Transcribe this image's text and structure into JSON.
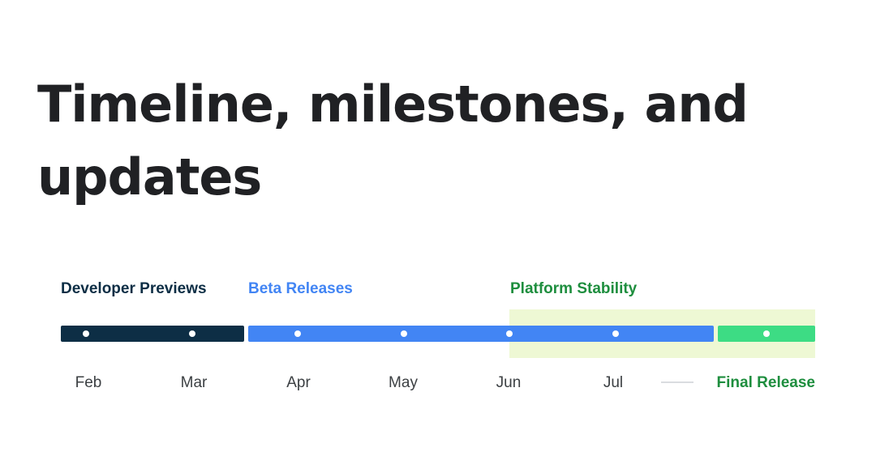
{
  "title": "Timeline, milestones, and updates",
  "phases": {
    "developer_previews": {
      "label": "Developer Previews",
      "color": "#0d2e45"
    },
    "beta_releases": {
      "label": "Beta Releases",
      "color": "#4285f4"
    },
    "platform_stability": {
      "label": "Platform Stability",
      "color": "#1e8e3e",
      "band_color": "#eef8d4"
    },
    "final_release": {
      "label": "Final Release",
      "color": "#1e8e3e",
      "bar_color": "#3ddc84"
    }
  },
  "months": [
    "Feb",
    "Mar",
    "Apr",
    "May",
    "Jun",
    "Jul"
  ]
}
